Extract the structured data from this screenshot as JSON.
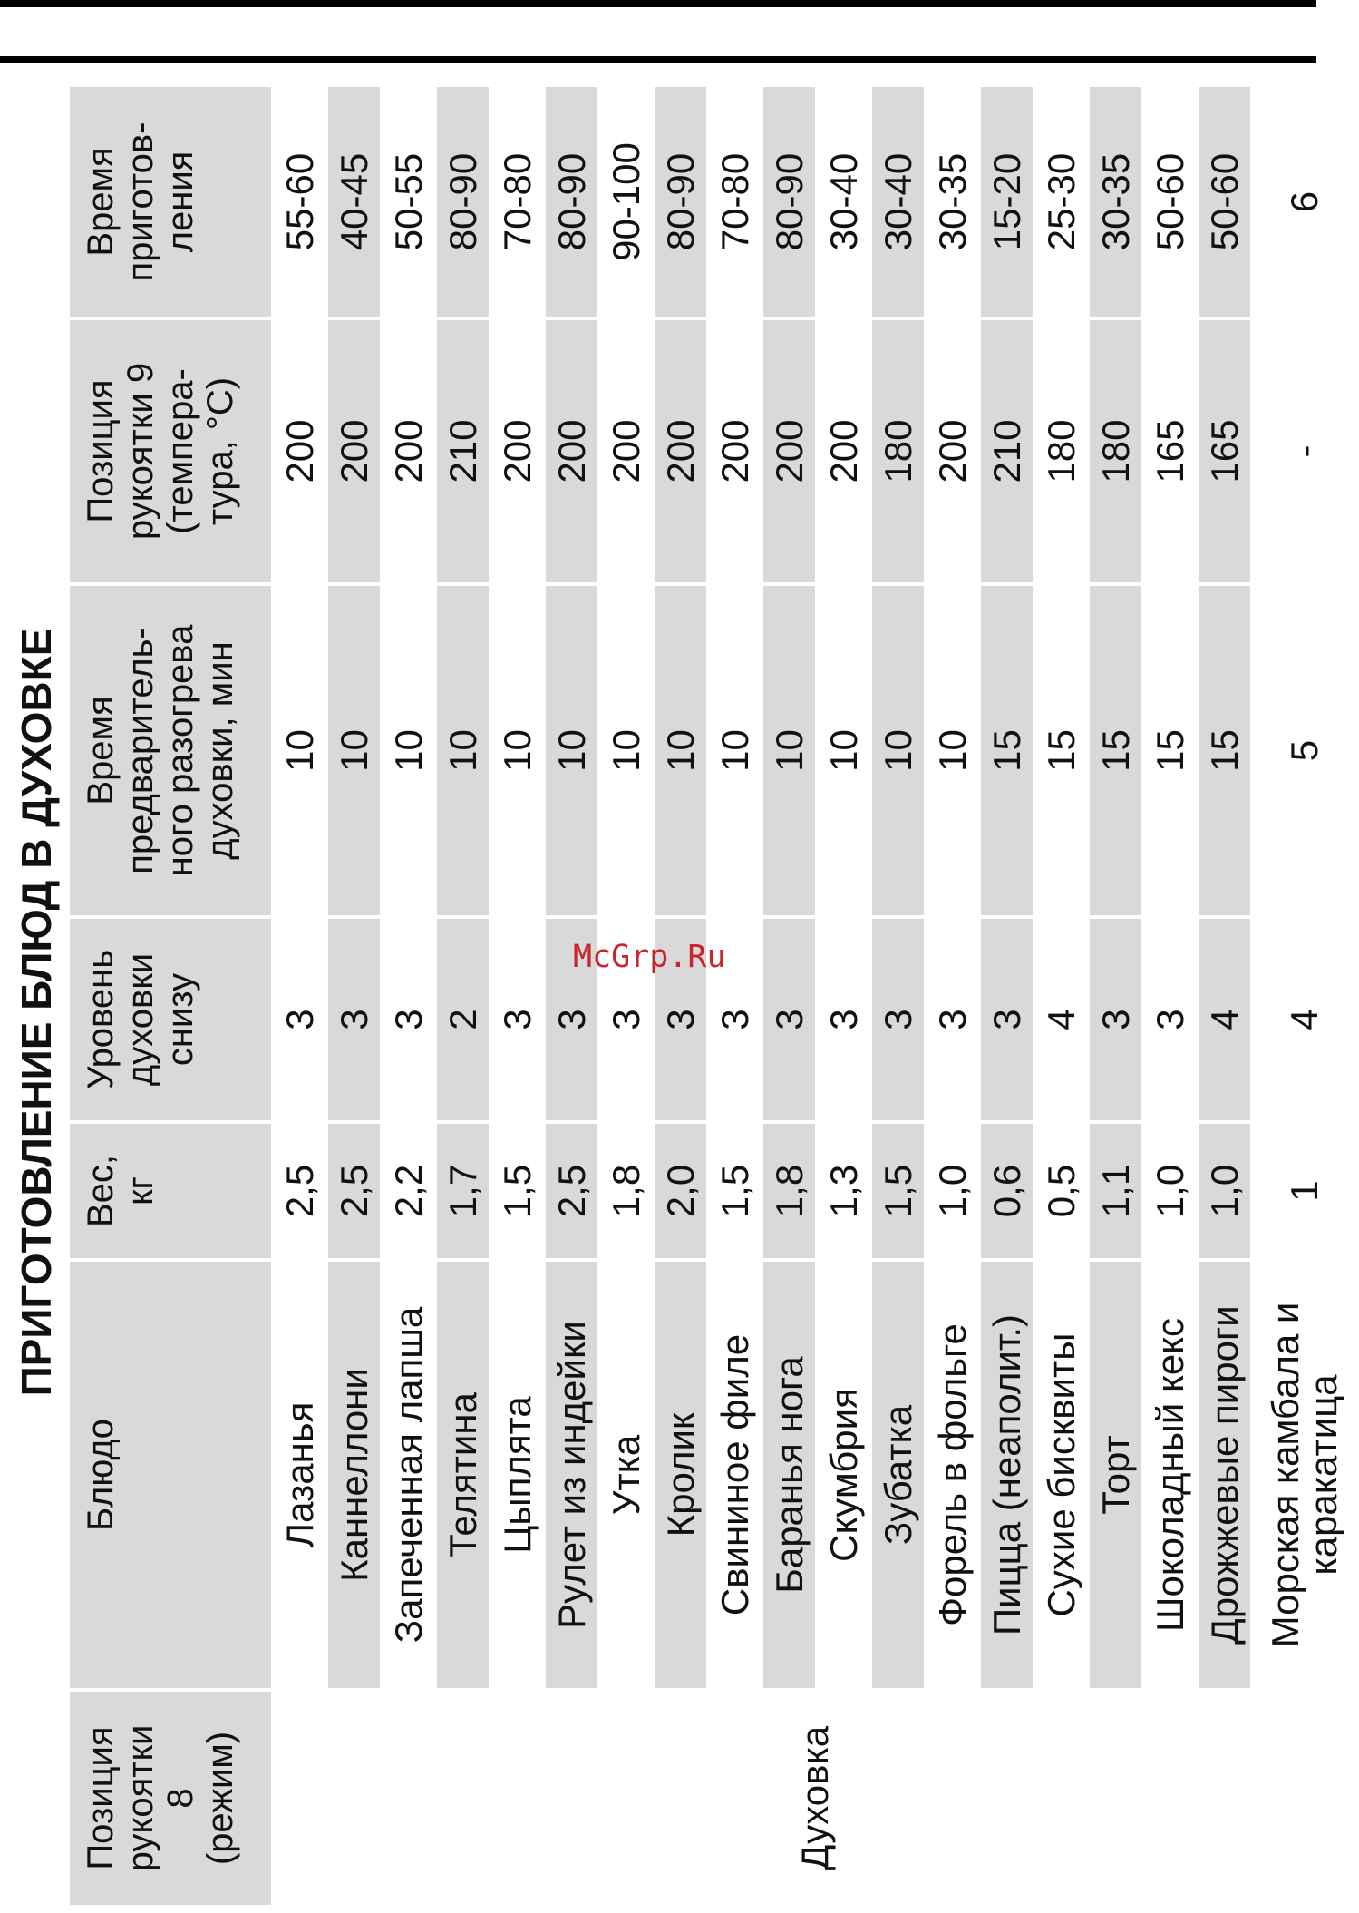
{
  "title": "ПРИГОТОВЛЕНИЕ БЛЮД В ДУХОВКЕ",
  "watermark": "McGrp.Ru",
  "table": {
    "headers": [
      "Позиция\nрукоятки\n8\n(режим)",
      "Блюдо",
      "Вес,\nкг",
      "Уровень\nдуховки\nснизу",
      "Время\nпредваритель-\nного разогрева\nдуховки, мин",
      "Позиция\nрукоятки 9\n(темпера-\nтура, °С)",
      "Время\nприготов-\nления"
    ],
    "mode": "Духовка",
    "rows": [
      [
        "Лазанья",
        "2,5",
        "3",
        "10",
        "200",
        "55-60"
      ],
      [
        "Каннеллони",
        "2,5",
        "3",
        "10",
        "200",
        "40-45"
      ],
      [
        "Запеченная лапша",
        "2,2",
        "3",
        "10",
        "200",
        "50-55"
      ],
      [
        "Телятина",
        "1,7",
        "2",
        "10",
        "210",
        "80-90"
      ],
      [
        "Цыплята",
        "1,5",
        "3",
        "10",
        "200",
        "70-80"
      ],
      [
        "Рулет из индейки",
        "2,5",
        "3",
        "10",
        "200",
        "80-90"
      ],
      [
        "Утка",
        "1,8",
        "3",
        "10",
        "200",
        "90-100"
      ],
      [
        "Кролик",
        "2,0",
        "3",
        "10",
        "200",
        "80-90"
      ],
      [
        "Свининое филе",
        "1,5",
        "3",
        "10",
        "200",
        "70-80"
      ],
      [
        "Баранья нога",
        "1,8",
        "3",
        "10",
        "200",
        "80-90"
      ],
      [
        "Скумбрия",
        "1,3",
        "3",
        "10",
        "200",
        "30-40"
      ],
      [
        "Зубатка",
        "1,5",
        "3",
        "10",
        "180",
        "30-40"
      ],
      [
        "Форель в фольге",
        "1,0",
        "3",
        "10",
        "200",
        "30-35"
      ],
      [
        "Пицца (неаполит.)",
        "0,6",
        "3",
        "15",
        "210",
        "15-20"
      ],
      [
        "Сухие бисквиты",
        "0,5",
        "4",
        "15",
        "180",
        "25-30"
      ],
      [
        "Торт",
        "1,1",
        "3",
        "15",
        "180",
        "30-35"
      ],
      [
        "Шоколадный кекс",
        "1,0",
        "3",
        "15",
        "165",
        "50-60"
      ],
      [
        "Дрожжевые пироги",
        "1,0",
        "4",
        "15",
        "165",
        "50-60"
      ],
      [
        "Морская камбала и каракатица",
        "1",
        "4",
        "5",
        "-",
        "6"
      ]
    ]
  }
}
